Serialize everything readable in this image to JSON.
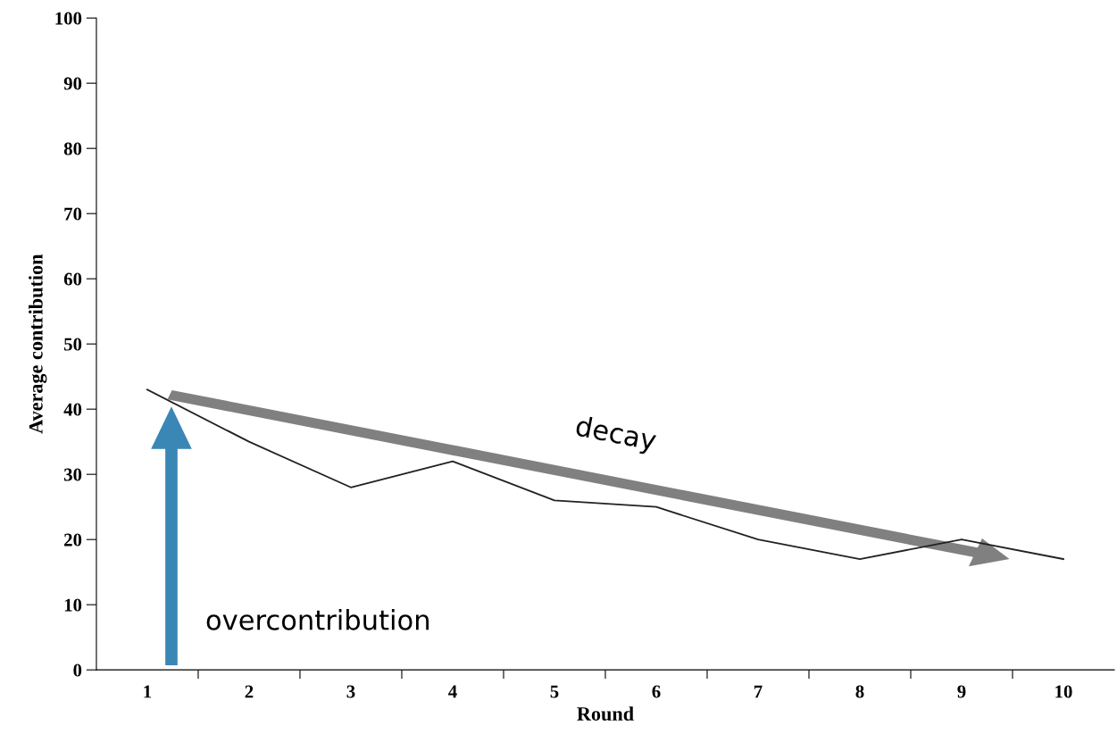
{
  "chart_data": {
    "type": "line",
    "xlabel": "Round",
    "ylabel": "Average contribution",
    "categories": [
      "1",
      "2",
      "3",
      "4",
      "5",
      "6",
      "7",
      "8",
      "9",
      "10"
    ],
    "series": [
      {
        "color": "#222222",
        "values": [
          43,
          35,
          28,
          32,
          26,
          25,
          20,
          17,
          20,
          17
        ]
      }
    ],
    "ylim": [
      0,
      100
    ],
    "yticks": [
      0,
      10,
      20,
      30,
      40,
      50,
      60,
      70,
      80,
      90,
      100
    ],
    "grid": false,
    "marker": "none",
    "line_style": "solid",
    "annotations": [
      "decay",
      "overcontribution"
    ]
  }
}
